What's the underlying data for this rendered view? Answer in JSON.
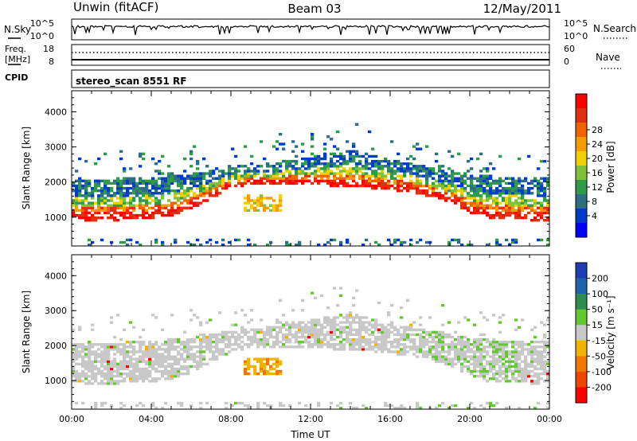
{
  "header": {
    "radar": "Unwin (fitACF)",
    "beam": "Beam 03",
    "date": "12/May/2011"
  },
  "nsky_panel": {
    "left_label": "N.Sky",
    "right_label": "N.Search",
    "ticks_left": [
      "10^5",
      "10^0"
    ],
    "ticks_right": [
      "10^5",
      "10^0"
    ]
  },
  "freq_panel": {
    "left_label_1": "Freq.",
    "left_label_2": "[MHz]",
    "right_label": "Nave",
    "ticks_left": [
      "18",
      "8"
    ],
    "ticks_right": [
      "60",
      "0"
    ],
    "cpid_label": "CPID",
    "cpid_value": "stereo_scan 8551 RF"
  },
  "chart_data": [
    {
      "type": "heatmap",
      "panel": "power",
      "ylabel": "Slant Range [km]",
      "ylim": [
        180,
        4600
      ],
      "yticks": [
        1000,
        2000,
        3000,
        4000
      ],
      "xlim_hours": [
        0,
        24
      ],
      "xticks": [
        "00:00",
        "04:00",
        "08:00",
        "12:00",
        "16:00",
        "20:00",
        "00:00"
      ],
      "colorbar": {
        "label": "Power [dB]",
        "ticks": [
          "4",
          "8",
          "12",
          "16",
          "20",
          "24",
          "28"
        ],
        "colors": [
          "#0000ff",
          "#003cc8",
          "#2d6e82",
          "#2e9b4a",
          "#7fc23a",
          "#f0d000",
          "#f59c00",
          "#f06400",
          "#e03010",
          "#ff0000"
        ]
      },
      "echo_band_lower_edge_km": [
        [
          0,
          950
        ],
        [
          2,
          920
        ],
        [
          4,
          980
        ],
        [
          5,
          1050
        ],
        [
          6,
          1250
        ],
        [
          7,
          1550
        ],
        [
          8,
          1850
        ],
        [
          9,
          1950
        ],
        [
          12,
          1950
        ],
        [
          15,
          1850
        ],
        [
          17,
          1750
        ],
        [
          19,
          1450
        ],
        [
          20,
          1150
        ],
        [
          21,
          980
        ],
        [
          24,
          920
        ]
      ],
      "echo_band_upper_edge_km": [
        [
          0,
          2000
        ],
        [
          4,
          2100
        ],
        [
          6,
          2200
        ],
        [
          8,
          2400
        ],
        [
          10,
          2500
        ],
        [
          12,
          2700
        ],
        [
          14,
          2900
        ],
        [
          16,
          2600
        ],
        [
          18,
          2400
        ],
        [
          20,
          2200
        ],
        [
          22,
          2100
        ],
        [
          24,
          2100
        ]
      ]
    },
    {
      "type": "heatmap",
      "panel": "velocity",
      "ylabel": "Slant Range [km]",
      "ylim": [
        180,
        4600
      ],
      "yticks": [
        1000,
        2000,
        3000,
        4000
      ],
      "xlabel": "Time UT",
      "xlim_hours": [
        0,
        24
      ],
      "xticks": [
        "00:00",
        "04:00",
        "08:00",
        "12:00",
        "16:00",
        "20:00",
        "00:00"
      ],
      "colorbar": {
        "label": "Velocity [m s⁻¹]",
        "ticks": [
          "200",
          "100",
          "50",
          "15",
          "-15",
          "-50",
          "-100",
          "-200"
        ],
        "colors": [
          "#1e3cb4",
          "#1e64aa",
          "#2d8c50",
          "#64c832",
          "#c8c8c8",
          "#f0b400",
          "#f07800",
          "#f04600",
          "#ff0000"
        ]
      }
    }
  ]
}
